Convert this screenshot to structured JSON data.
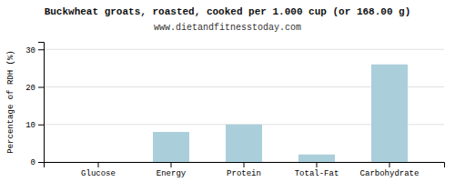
{
  "chart_data": {
    "type": "bar",
    "title": "Buckwheat groats, roasted, cooked per 1.000 cup (or 168.00 g)",
    "subtitle": "www.dietandfitnesstoday.com",
    "categories": [
      "Glucose",
      "Energy",
      "Protein",
      "Total-Fat",
      "Carbohydrate"
    ],
    "values": [
      0,
      8,
      10,
      2,
      26
    ],
    "color": "#aacfdb",
    "ylabel": "Percentage of RDH (%)",
    "ylim": [
      0,
      32
    ],
    "yticks": [
      0,
      10,
      20,
      30
    ],
    "grid": true
  }
}
